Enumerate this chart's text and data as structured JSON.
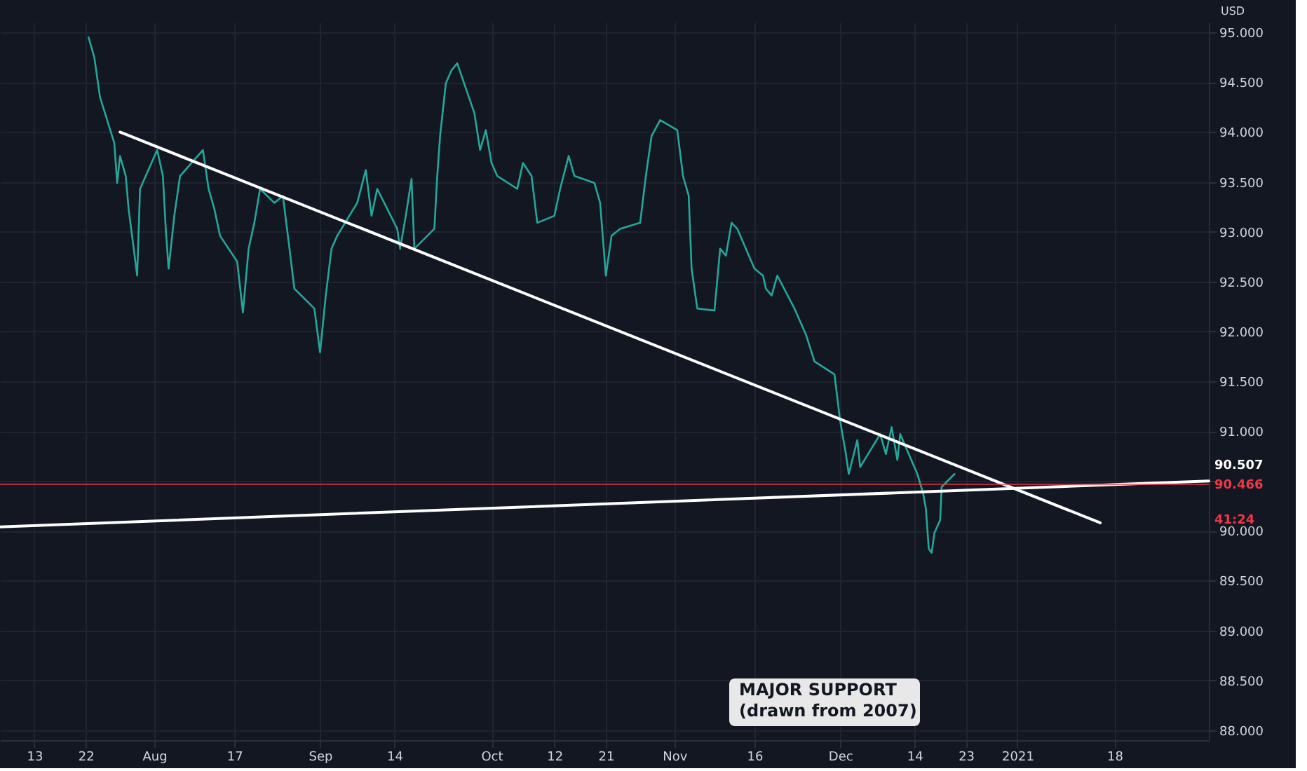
{
  "chart_data": {
    "type": "line",
    "ylabel": "USD",
    "xlim": [
      "2020-07-07",
      "2021-02-03T12:00"
    ],
    "ylim": [
      87.9,
      95.1
    ],
    "xticks": [
      {
        "value": "2020-07-13",
        "label": "13"
      },
      {
        "value": "2020-07-22",
        "label": "22"
      },
      {
        "value": "2020-08-03",
        "label": "Aug"
      },
      {
        "value": "2020-08-17",
        "label": "17"
      },
      {
        "value": "2020-09-01",
        "label": "Sep"
      },
      {
        "value": "2020-09-14",
        "label": "14"
      },
      {
        "value": "2020-10-01",
        "label": "Oct"
      },
      {
        "value": "2020-10-12",
        "label": "12"
      },
      {
        "value": "2020-10-21",
        "label": "21"
      },
      {
        "value": "2020-11-02",
        "label": "Nov"
      },
      {
        "value": "2020-11-16",
        "label": "16"
      },
      {
        "value": "2020-12-01",
        "label": "Dec"
      },
      {
        "value": "2020-12-14",
        "label": "14"
      },
      {
        "value": "2020-12-23",
        "label": "23"
      },
      {
        "value": "2021-01-01",
        "label": "2021"
      },
      {
        "value": "2021-01-18",
        "label": "18"
      }
    ],
    "yticks": [
      {
        "value": 88,
        "label": "88.000"
      },
      {
        "value": 88.5,
        "label": "88.500"
      },
      {
        "value": 89,
        "label": "89.000"
      },
      {
        "value": 89.5,
        "label": "89.500"
      },
      {
        "value": 90,
        "label": "90.000"
      },
      {
        "value": 90.5,
        "label": null
      },
      {
        "value": 91,
        "label": "91.000"
      },
      {
        "value": 91.5,
        "label": "91.500"
      },
      {
        "value": 92,
        "label": "92.000"
      },
      {
        "value": 92.5,
        "label": "92.500"
      },
      {
        "value": 93,
        "label": "93.000"
      },
      {
        "value": 93.5,
        "label": "93.500"
      },
      {
        "value": 94,
        "label": "94.000"
      },
      {
        "value": 94.5,
        "label": "94.500"
      },
      {
        "value": 95,
        "label": "95.000"
      }
    ],
    "grid": true,
    "line_style": "solid",
    "series": [
      {
        "color": "#26a69a",
        "x": [
          "2020-07-22T12:00",
          "2020-07-23T12:00",
          "2020-07-24T12:00",
          "2020-07-27T00:00",
          "2020-07-27T12:00",
          "2020-07-28T00:00",
          "2020-07-29T00:00",
          "2020-07-29T12:00",
          "2020-07-31T00:00",
          "2020-07-31T12:00",
          "2020-08-03T12:00",
          "2020-08-04T12:00",
          "2020-08-05T00:00",
          "2020-08-05T12:00",
          "2020-08-06T12:00",
          "2020-08-07T12:00",
          "2020-08-11T12:00",
          "2020-08-12T12:00",
          "2020-08-13T12:00",
          "2020-08-14T12:00",
          "2020-08-17T12:00",
          "2020-08-18T12:00",
          "2020-08-19T12:00",
          "2020-08-20T12:00",
          "2020-08-21T12:00",
          "2020-08-24T00:00",
          "2020-08-25T12:00",
          "2020-08-26T12:00",
          "2020-08-27T12:00",
          "2020-08-31T00:00",
          "2020-09-01T00:00",
          "2020-09-02T00:00",
          "2020-09-03T00:00",
          "2020-09-04T00:00",
          "2020-09-07T12:00",
          "2020-09-09T00:00",
          "2020-09-10T00:00",
          "2020-09-11T00:00",
          "2020-09-14T12:00",
          "2020-09-15T00:00",
          "2020-09-16T00:00",
          "2020-09-17T00:00",
          "2020-09-17T12:00",
          "2020-09-21T00:00",
          "2020-09-21T12:00",
          "2020-09-22T00:00",
          "2020-09-23T00:00",
          "2020-09-24T00:00",
          "2020-09-25T00:00",
          "2020-09-28T00:00",
          "2020-09-29T00:00",
          "2020-09-30T00:00",
          "2020-10-01T00:00",
          "2020-10-02T00:00",
          "2020-10-05T12:00",
          "2020-10-06T12:00",
          "2020-10-08T00:00",
          "2020-10-09T00:00",
          "2020-10-12T00:00",
          "2020-10-13T00:00",
          "2020-10-14T12:00",
          "2020-10-15T12:00",
          "2020-10-19T00:00",
          "2020-10-20T00:00",
          "2020-10-21T00:00",
          "2020-10-22T00:00",
          "2020-10-23T12:00",
          "2020-10-27T00:00",
          "2020-10-28T00:00",
          "2020-10-29T00:00",
          "2020-10-30T12:00",
          "2020-11-02T12:00",
          "2020-11-03T12:00",
          "2020-11-04T12:00",
          "2020-11-05T00:00",
          "2020-11-06T00:00",
          "2020-11-09T00:00",
          "2020-11-10T00:00",
          "2020-11-11T00:00",
          "2020-11-12T00:00",
          "2020-11-13T00:00",
          "2020-11-16T00:00",
          "2020-11-17T12:00",
          "2020-11-18T00:00",
          "2020-11-19T00:00",
          "2020-11-20T00:00",
          "2020-11-23T00:00",
          "2020-11-24T00:00",
          "2020-11-25T00:00",
          "2020-11-26T12:00",
          "2020-11-30T00:00",
          "2020-12-01T00:00",
          "2020-12-02T00:00",
          "2020-12-02T12:00",
          "2020-12-04T00:00",
          "2020-12-04T12:00",
          "2020-12-08T00:00",
          "2020-12-09T00:00",
          "2020-12-10T00:00",
          "2020-12-11T00:00",
          "2020-12-11T12:00",
          "2020-12-14T12:00",
          "2020-12-15T12:00",
          "2020-12-16T00:00",
          "2020-12-16T12:00",
          "2020-12-17T00:00",
          "2020-12-17T12:00",
          "2020-12-18T12:00",
          "2020-12-18T18:00",
          "2020-12-21T00:00"
        ],
        "values": [
          94.95,
          94.75,
          94.35,
          93.89,
          93.49,
          93.76,
          93.56,
          93.23,
          92.56,
          93.43,
          93.82,
          93.56,
          93.03,
          92.63,
          93.16,
          93.56,
          93.82,
          93.43,
          93.23,
          92.96,
          92.7,
          92.19,
          92.83,
          93.09,
          93.43,
          93.29,
          93.36,
          92.9,
          92.43,
          92.23,
          91.79,
          92.36,
          92.83,
          92.96,
          93.29,
          93.62,
          93.16,
          93.43,
          93.03,
          92.83,
          93.16,
          93.53,
          92.83,
          93.03,
          93.56,
          93.96,
          94.49,
          94.62,
          94.69,
          94.19,
          93.82,
          94.02,
          93.69,
          93.56,
          93.43,
          93.69,
          93.56,
          93.09,
          93.16,
          93.43,
          93.76,
          93.56,
          93.49,
          93.29,
          92.56,
          92.96,
          93.03,
          93.09,
          93.56,
          93.96,
          94.12,
          94.02,
          93.56,
          93.36,
          92.63,
          92.23,
          92.21,
          92.83,
          92.76,
          93.09,
          93.03,
          92.63,
          92.56,
          92.43,
          92.36,
          92.56,
          92.23,
          92.1,
          91.97,
          91.7,
          91.57,
          91.1,
          90.77,
          90.57,
          90.91,
          90.64,
          90.97,
          90.77,
          91.04,
          90.71,
          90.97,
          90.57,
          90.38,
          90.22,
          89.82,
          89.78,
          89.98,
          90.11,
          90.44,
          90.57
        ]
      },
      {
        "type": "line",
        "color": "#ffffff",
        "x": [
          "2020-07-28T00:00",
          "2021-01-15T12:00"
        ],
        "values": [
          94.0,
          90.08
        ]
      },
      {
        "type": "line",
        "color": "#ffffff",
        "x": [
          "2020-07-07T00:00",
          "2021-02-03T12:00"
        ],
        "values": [
          90.04,
          90.5
        ]
      }
    ],
    "ref_lines": [
      {
        "axis": "y",
        "value": 90.466,
        "label": "90.466",
        "color": "#f23645"
      }
    ],
    "annotations": [
      {
        "text": "90.507",
        "x": "2021-02-03T12:00",
        "y": 90.507
      },
      "41:24",
      "MAJOR SUPPORT\n(drawn from 2007)"
    ]
  }
}
